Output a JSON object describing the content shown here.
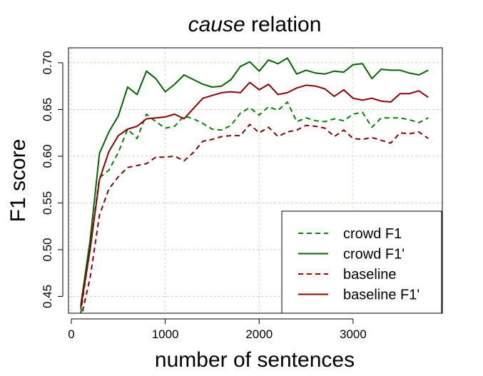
{
  "chart_data": {
    "type": "line",
    "title_em": "cause",
    "title_rest": " relation",
    "xlabel": "number of sentences",
    "ylabel": "F1 score",
    "xlim": [
      -30,
      3950
    ],
    "ylim": [
      0.432,
      0.716
    ],
    "xticks": [
      0,
      1000,
      2000,
      3000
    ],
    "xtick_labels": [
      "0",
      "1000",
      "2000",
      "3000"
    ],
    "yticks": [
      0.45,
      0.5,
      0.55,
      0.6,
      0.65,
      0.7
    ],
    "ytick_labels": [
      "0.45",
      "0.50",
      "0.55",
      "0.60",
      "0.65",
      "0.70"
    ],
    "grid": true,
    "legend_position": "bottom-right",
    "x": [
      100,
      200,
      300,
      400,
      500,
      600,
      700,
      800,
      900,
      1000,
      1100,
      1200,
      1300,
      1400,
      1500,
      1600,
      1700,
      1800,
      1900,
      2000,
      2100,
      2200,
      2300,
      2400,
      2500,
      2600,
      2700,
      2800,
      2900,
      3000,
      3100,
      3200,
      3300,
      3400,
      3500,
      3600,
      3700,
      3800
    ],
    "series": [
      {
        "name": "crowd F1",
        "color": "#0a7d0a",
        "dash": true,
        "values": [
          0.432,
          0.502,
          0.577,
          0.585,
          0.604,
          0.629,
          0.619,
          0.645,
          0.637,
          0.63,
          0.632,
          0.643,
          0.64,
          0.635,
          0.629,
          0.628,
          0.633,
          0.646,
          0.652,
          0.644,
          0.653,
          0.649,
          0.658,
          0.637,
          0.641,
          0.638,
          0.637,
          0.64,
          0.638,
          0.645,
          0.647,
          0.631,
          0.641,
          0.641,
          0.641,
          0.639,
          0.636,
          0.641
        ]
      },
      {
        "name": "crowd F1'",
        "color": "#006400",
        "dash": false,
        "values": [
          0.44,
          0.51,
          0.603,
          0.626,
          0.643,
          0.674,
          0.666,
          0.691,
          0.683,
          0.669,
          0.677,
          0.687,
          0.682,
          0.677,
          0.674,
          0.675,
          0.682,
          0.696,
          0.701,
          0.691,
          0.703,
          0.699,
          0.705,
          0.688,
          0.692,
          0.689,
          0.688,
          0.691,
          0.69,
          0.698,
          0.699,
          0.683,
          0.693,
          0.692,
          0.692,
          0.689,
          0.687,
          0.692
        ]
      },
      {
        "name": "baseline",
        "color": "#8b0000",
        "dash": true,
        "values": [
          0.425,
          0.47,
          0.537,
          0.565,
          0.578,
          0.588,
          0.59,
          0.592,
          0.599,
          0.599,
          0.6,
          0.595,
          0.604,
          0.616,
          0.618,
          0.621,
          0.622,
          0.622,
          0.634,
          0.625,
          0.631,
          0.621,
          0.626,
          0.628,
          0.633,
          0.632,
          0.63,
          0.621,
          0.628,
          0.619,
          0.618,
          0.62,
          0.617,
          0.614,
          0.625,
          0.624,
          0.626,
          0.619
        ]
      },
      {
        "name": "baseline F1'",
        "color": "#8b0000",
        "dash": false,
        "values": [
          0.437,
          0.5,
          0.575,
          0.605,
          0.622,
          0.629,
          0.632,
          0.64,
          0.641,
          0.642,
          0.645,
          0.64,
          0.651,
          0.662,
          0.665,
          0.668,
          0.669,
          0.668,
          0.679,
          0.671,
          0.677,
          0.666,
          0.668,
          0.673,
          0.676,
          0.675,
          0.672,
          0.664,
          0.671,
          0.662,
          0.66,
          0.662,
          0.659,
          0.658,
          0.667,
          0.667,
          0.67,
          0.663
        ]
      }
    ]
  }
}
